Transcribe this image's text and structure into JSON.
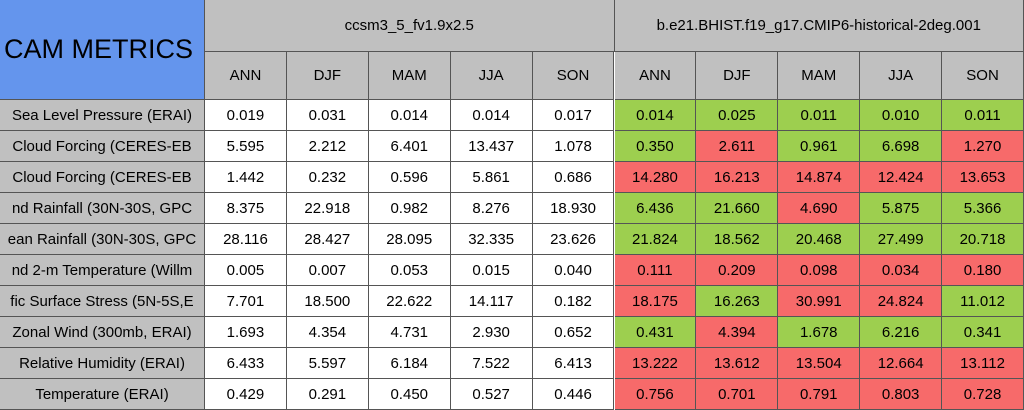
{
  "title": "CAM METRICS",
  "cases": [
    {
      "name": "ccsm3_5_fv1.9x2.5",
      "seasons": [
        "ANN",
        "DJF",
        "MAM",
        "JJA",
        "SON"
      ]
    },
    {
      "name": "b.e21.BHIST.f19_g17.CMIP6-historical-2deg.001",
      "seasons": [
        "ANN",
        "DJF",
        "MAM",
        "JJA",
        "SON"
      ]
    }
  ],
  "rows": [
    {
      "label": "Sea Level Pressure (ERAI)",
      "values": [
        "0.019",
        "0.031",
        "0.014",
        "0.014",
        "0.017",
        "0.014",
        "0.025",
        "0.011",
        "0.010",
        "0.011"
      ],
      "colors": [
        "#ffffff",
        "#ffffff",
        "#ffffff",
        "#ffffff",
        "#ffffff",
        "#9dcf4f",
        "#9dcf4f",
        "#9dcf4f",
        "#9dcf4f",
        "#9dcf4f"
      ]
    },
    {
      "label": "Cloud Forcing (CERES-EB",
      "values": [
        "5.595",
        "2.212",
        "6.401",
        "13.437",
        "1.078",
        "0.350",
        "2.611",
        "0.961",
        "6.698",
        "1.270"
      ],
      "colors": [
        "#ffffff",
        "#ffffff",
        "#ffffff",
        "#ffffff",
        "#ffffff",
        "#9dcf4f",
        "#f76a6a",
        "#9dcf4f",
        "#9dcf4f",
        "#f76a6a"
      ]
    },
    {
      "label": "Cloud Forcing (CERES-EB",
      "values": [
        "1.442",
        "0.232",
        "0.596",
        "5.861",
        "0.686",
        "14.280",
        "16.213",
        "14.874",
        "12.424",
        "13.653"
      ],
      "colors": [
        "#ffffff",
        "#ffffff",
        "#ffffff",
        "#ffffff",
        "#ffffff",
        "#f76a6a",
        "#f76a6a",
        "#f76a6a",
        "#f76a6a",
        "#f76a6a"
      ]
    },
    {
      "label": "nd Rainfall (30N-30S, GPC",
      "values": [
        "8.375",
        "22.918",
        "0.982",
        "8.276",
        "18.930",
        "6.436",
        "21.660",
        "4.690",
        "5.875",
        "5.366"
      ],
      "colors": [
        "#ffffff",
        "#ffffff",
        "#ffffff",
        "#ffffff",
        "#ffffff",
        "#9dcf4f",
        "#9dcf4f",
        "#f76a6a",
        "#9dcf4f",
        "#9dcf4f"
      ]
    },
    {
      "label": "ean Rainfall (30N-30S, GPC",
      "values": [
        "28.116",
        "28.427",
        "28.095",
        "32.335",
        "23.626",
        "21.824",
        "18.562",
        "20.468",
        "27.499",
        "20.718"
      ],
      "colors": [
        "#ffffff",
        "#ffffff",
        "#ffffff",
        "#ffffff",
        "#ffffff",
        "#9dcf4f",
        "#9dcf4f",
        "#9dcf4f",
        "#9dcf4f",
        "#9dcf4f"
      ]
    },
    {
      "label": "nd 2-m Temperature (Willm",
      "values": [
        "0.005",
        "0.007",
        "0.053",
        "0.015",
        "0.040",
        "0.111",
        "0.209",
        "0.098",
        "0.034",
        "0.180"
      ],
      "colors": [
        "#ffffff",
        "#ffffff",
        "#ffffff",
        "#ffffff",
        "#ffffff",
        "#f76a6a",
        "#f76a6a",
        "#f76a6a",
        "#f76a6a",
        "#f76a6a"
      ]
    },
    {
      "label": "fic Surface Stress (5N-5S,E",
      "values": [
        "7.701",
        "18.500",
        "22.622",
        "14.117",
        "0.182",
        "18.175",
        "16.263",
        "30.991",
        "24.824",
        "11.012"
      ],
      "colors": [
        "#ffffff",
        "#ffffff",
        "#ffffff",
        "#ffffff",
        "#ffffff",
        "#f76a6a",
        "#9dcf4f",
        "#f76a6a",
        "#f76a6a",
        "#9dcf4f"
      ]
    },
    {
      "label": "Zonal Wind (300mb, ERAI)",
      "values": [
        "1.693",
        "4.354",
        "4.731",
        "2.930",
        "0.652",
        "0.431",
        "4.394",
        "1.678",
        "6.216",
        "0.341"
      ],
      "colors": [
        "#ffffff",
        "#ffffff",
        "#ffffff",
        "#ffffff",
        "#ffffff",
        "#9dcf4f",
        "#f76a6a",
        "#9dcf4f",
        "#9dcf4f",
        "#9dcf4f"
      ]
    },
    {
      "label": "Relative Humidity (ERAI)",
      "values": [
        "6.433",
        "5.597",
        "6.184",
        "7.522",
        "6.413",
        "13.222",
        "13.612",
        "13.504",
        "12.664",
        "13.112"
      ],
      "colors": [
        "#ffffff",
        "#ffffff",
        "#ffffff",
        "#ffffff",
        "#ffffff",
        "#f76a6a",
        "#f76a6a",
        "#f76a6a",
        "#f76a6a",
        "#f76a6a"
      ]
    },
    {
      "label": "Temperature (ERAI)",
      "values": [
        "0.429",
        "0.291",
        "0.450",
        "0.527",
        "0.446",
        "0.756",
        "0.701",
        "0.791",
        "0.803",
        "0.728"
      ],
      "colors": [
        "#ffffff",
        "#ffffff",
        "#ffffff",
        "#ffffff",
        "#ffffff",
        "#f76a6a",
        "#f76a6a",
        "#f76a6a",
        "#f76a6a",
        "#f76a6a"
      ]
    }
  ]
}
